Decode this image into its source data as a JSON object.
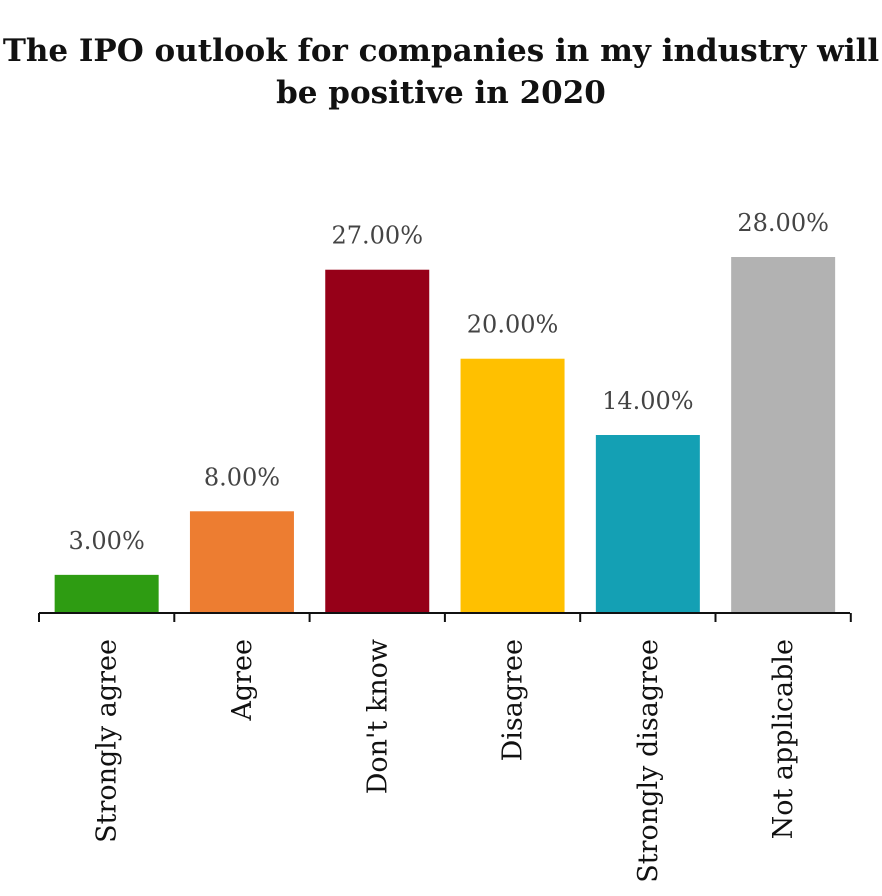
{
  "chart_data": {
    "type": "bar",
    "title_lines": [
      "The IPO outlook for companies in my industry will",
      "be positive in 2020"
    ],
    "categories": [
      "Strongly agree",
      "Agree",
      "Don't know",
      "Disagree",
      "Strongly disagree",
      "Not applicable"
    ],
    "values": [
      3,
      8,
      27,
      20,
      14,
      28
    ],
    "value_labels": [
      "3.00%",
      "8.00%",
      "27.00%",
      "20.00%",
      "14.00%",
      "28.00%"
    ],
    "colors": [
      "#2e9c12",
      "#ed7d31",
      "#960018",
      "#ffc000",
      "#14a0b4",
      "#b2b2b2"
    ],
    "ylim": [
      0,
      28
    ],
    "grid": false,
    "legend": "none"
  }
}
